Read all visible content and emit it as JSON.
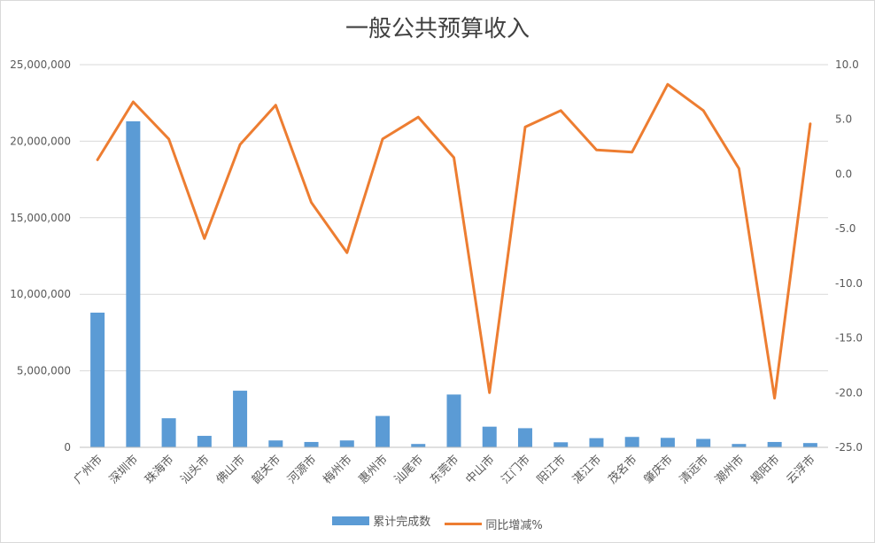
{
  "chart_data": {
    "type": "bar+line",
    "title": "一般公共预算收入",
    "categories": [
      "广州市",
      "深圳市",
      "珠海市",
      "汕头市",
      "佛山市",
      "韶关市",
      "河源市",
      "梅州市",
      "惠州市",
      "汕尾市",
      "东莞市",
      "中山市",
      "江门市",
      "阳江市",
      "湛江市",
      "茂名市",
      "肇庆市",
      "清远市",
      "潮州市",
      "揭阳市",
      "云浮市"
    ],
    "series": [
      {
        "name": "累计完成数",
        "type": "bar",
        "axis": "left",
        "color": "#5b9bd5",
        "values": [
          8800000,
          21300000,
          1900000,
          750000,
          3700000,
          450000,
          350000,
          450000,
          2050000,
          220000,
          3450000,
          1350000,
          1250000,
          330000,
          600000,
          680000,
          620000,
          550000,
          220000,
          350000,
          280000
        ]
      },
      {
        "name": "同比增减%",
        "type": "line",
        "axis": "right",
        "color": "#ed7d31",
        "values": [
          1.3,
          6.6,
          3.2,
          -5.9,
          2.7,
          6.3,
          -2.6,
          -7.2,
          3.2,
          5.2,
          1.5,
          -20.0,
          4.3,
          5.8,
          2.2,
          2.0,
          8.2,
          5.8,
          0.5,
          -20.5,
          4.6
        ]
      }
    ],
    "y_left": {
      "min": 0,
      "max": 25000000,
      "ticks": [
        "0",
        "5,000,000",
        "10,000,000",
        "15,000,000",
        "20,000,000",
        "25,000,000"
      ]
    },
    "y_right": {
      "min": -25,
      "max": 10,
      "ticks": [
        "-25.0",
        "-20.0",
        "-15.0",
        "-10.0",
        "-5.0",
        "0.0",
        "5.0",
        "10.0"
      ]
    },
    "grid": true,
    "legend_position": "bottom"
  }
}
